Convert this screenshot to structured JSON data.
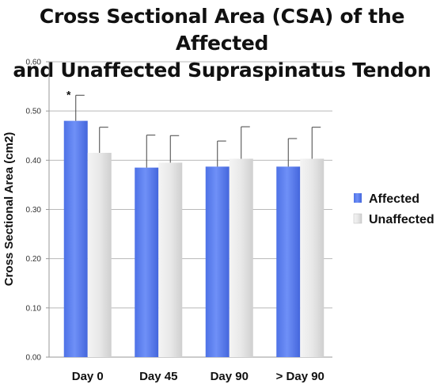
{
  "chart_data": {
    "type": "bar",
    "title": "Cross Sectional Area (CSA) of the Affected and Unaffected Supraspinatus Tendon",
    "title_lines": [
      "Cross Sectional Area (CSA) of the Affected",
      "and Unaffected Supraspinatus Tendon"
    ],
    "xlabel": "",
    "ylabel": "Cross Sectional Area (cm2)",
    "ylim": [
      0,
      0.6
    ],
    "yticks": [
      "0.00",
      "0.10",
      "0.20",
      "0.30",
      "0.40",
      "0.50",
      "0.60"
    ],
    "grid": true,
    "legend_position": "right",
    "categories": [
      "Day 0",
      "Day 45",
      "Day 90",
      "> Day 90"
    ],
    "series": [
      {
        "name": "Affected",
        "color": "#5b7ff0",
        "values": [
          0.48,
          0.385,
          0.387,
          0.387
        ],
        "error": [
          0.052,
          0.066,
          0.052,
          0.057
        ]
      },
      {
        "name": "Unaffected",
        "color": "#e4e4e4",
        "values": [
          0.415,
          0.395,
          0.403,
          0.403
        ],
        "error": [
          0.052,
          0.055,
          0.065,
          0.064
        ]
      }
    ],
    "annotations": [
      {
        "category": "Day 0",
        "series": "Affected",
        "text": "*"
      }
    ]
  }
}
